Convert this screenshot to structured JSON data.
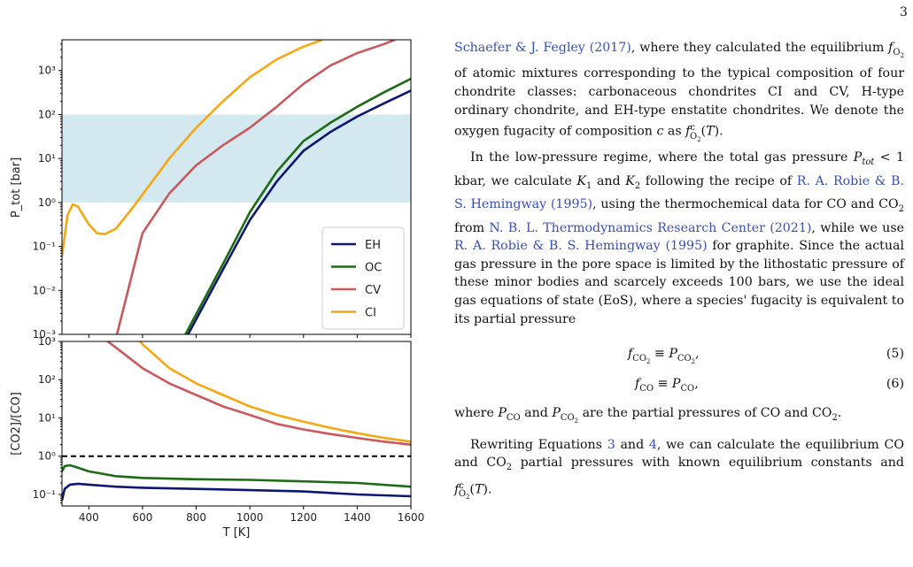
{
  "page_number": "3",
  "chart_data": [
    {
      "type": "line",
      "ylabel": "P_tot [bar]",
      "y_scale": "log",
      "ylim": [
        0.001,
        5000
      ],
      "xlim": [
        300,
        1600
      ],
      "x_ticks": [
        400,
        600,
        800,
        1000,
        1200,
        1400,
        1600
      ],
      "y_ticks": [
        "10⁻³",
        "10⁻²",
        "10⁻¹",
        "10⁰",
        "10¹",
        "10²",
        "10³"
      ],
      "shaded_band": [
        1,
        100
      ],
      "legend_position": "lower-right",
      "series": [
        {
          "name": "EH",
          "color": "#0d1673",
          "x": [
            770,
            900,
            1000,
            1100,
            1200,
            1300,
            1400,
            1500,
            1600
          ],
          "y": [
            0.001,
            0.03,
            0.4,
            3,
            15,
            40,
            90,
            180,
            350
          ]
        },
        {
          "name": "OC",
          "color": "#1e6b16",
          "x": [
            760,
            900,
            1000,
            1100,
            1200,
            1300,
            1400,
            1500,
            1600
          ],
          "y": [
            0.001,
            0.04,
            0.6,
            5,
            25,
            65,
            150,
            320,
            650
          ]
        },
        {
          "name": "CV",
          "color": "#c9595d",
          "x": [
            505,
            600,
            700,
            800,
            900,
            1000,
            1100,
            1200,
            1300,
            1400,
            1500,
            1540
          ],
          "y": [
            0.001,
            0.2,
            1.6,
            7,
            20,
            50,
            150,
            500,
            1300,
            2500,
            4000,
            5000
          ]
        },
        {
          "name": "CI",
          "color": "#f4a814",
          "x": [
            300,
            320,
            340,
            360,
            380,
            400,
            430,
            460,
            500,
            550,
            600,
            700,
            800,
            900,
            1000,
            1100,
            1200,
            1270
          ],
          "y": [
            0.06,
            0.5,
            0.9,
            0.8,
            0.5,
            0.32,
            0.2,
            0.19,
            0.25,
            0.6,
            1.5,
            10,
            50,
            200,
            700,
            1800,
            3500,
            5000
          ]
        }
      ]
    },
    {
      "type": "line",
      "xlabel": "T [K]",
      "ylabel": "[CO2]/[CO]",
      "y_scale": "log",
      "ylim": [
        0.05,
        1000
      ],
      "xlim": [
        300,
        1600
      ],
      "x_ticks": [
        "400",
        "600",
        "800",
        "1000",
        "1200",
        "1400",
        "1600"
      ],
      "y_ticks": [
        "10⁻¹",
        "10⁰",
        "10¹",
        "10²",
        "10³"
      ],
      "reference_line": 1,
      "series": [
        {
          "name": "EH",
          "color": "#0d1673",
          "x": [
            300,
            310,
            330,
            360,
            400,
            500,
            600,
            800,
            1000,
            1200,
            1400,
            1600
          ],
          "y": [
            0.07,
            0.14,
            0.18,
            0.19,
            0.18,
            0.16,
            0.15,
            0.14,
            0.13,
            0.12,
            0.1,
            0.09
          ]
        },
        {
          "name": "OC",
          "color": "#1e6b16",
          "x": [
            300,
            310,
            330,
            360,
            400,
            500,
            600,
            800,
            1000,
            1200,
            1400,
            1600
          ],
          "y": [
            0.4,
            0.55,
            0.58,
            0.5,
            0.4,
            0.3,
            0.27,
            0.25,
            0.24,
            0.22,
            0.2,
            0.16
          ]
        },
        {
          "name": "CV",
          "color": "#c9595d",
          "x": [
            470,
            500,
            600,
            700,
            800,
            900,
            1000,
            1100,
            1200,
            1300,
            1400,
            1500,
            1600
          ],
          "y": [
            1000,
            700,
            200,
            80,
            40,
            20,
            12,
            7,
            5,
            3.8,
            3,
            2.4,
            2
          ]
        },
        {
          "name": "CI",
          "color": "#f4a814",
          "x": [
            590,
            600,
            700,
            800,
            900,
            1000,
            1100,
            1200,
            1300,
            1400,
            1500,
            1600
          ],
          "y": [
            1000,
            850,
            200,
            80,
            40,
            20,
            12,
            8,
            5.5,
            4,
            3,
            2.4
          ]
        }
      ]
    }
  ],
  "text": {
    "p1": {
      "cite1": "Schaefer & J. Fegley (2017)",
      "t1": ", where they calculated the equilibrium ",
      "t2": " of atomic mixtures corresponding to the typical composition of four chondrite classes: carbonaceous chondrites CI and CV, H-type ordinary chondrite, and EH-type enstatite chondrites. We denote the oxygen fugacity of composition ",
      "t3": " as "
    },
    "p2": {
      "t1": "In the low-pressure regime, where the total gas pressure ",
      "t2": " < 1 kbar, we calculate ",
      "t3": " and ",
      "t4": " following the recipe of ",
      "cite1": "R. A. Robie & B. S. Hemingway (1995)",
      "t5": ", using the thermochemical data for CO and CO",
      "t6": " from ",
      "cite2": "N. B. L. Thermodynamics Research Center (2021)",
      "t7": ", while we use ",
      "cite3": "R. A. Robie & B. S. Hemingway (1995)",
      "t8": " for graphite. Since the actual gas pressure in the pore space is limited by the lithostatic pressure of these minor bodies and scarcely exceeds 100 bars, we use the ideal gas equations of state (EoS), where a species' fugacity is equivalent to its partial pressure"
    },
    "eq5": {
      "lhs": "f",
      "mid": " ≡ ",
      "rhs": "P",
      "num": "(5)"
    },
    "eq6": {
      "lhs": "f",
      "mid": " ≡ ",
      "rhs": "P",
      "num": "(6)"
    },
    "p3": {
      "t1": "where ",
      "t2": " and ",
      "t3": " are the partial pressures of CO and CO",
      "t4": "."
    },
    "p4": {
      "t1": "Rewriting Equations ",
      "ref1": "3",
      "t2": " and ",
      "ref2": "4",
      "t3": ", we can calculate the equilibrium CO and CO",
      "t4": " partial pressures with known equilibrium constants and "
    }
  }
}
